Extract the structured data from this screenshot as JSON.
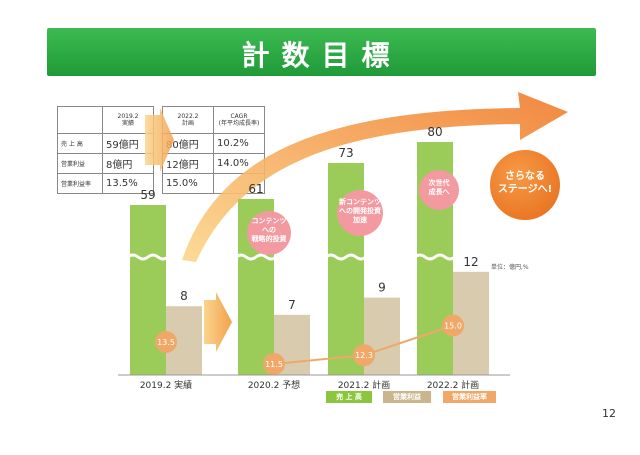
{
  "title": "計数目標",
  "table_left": {
    "header": "2019.2\n実績",
    "rows": [
      {
        "label": "売 上 高",
        "value": "59億円"
      },
      {
        "label": "営業利益",
        "value": "8億円"
      },
      {
        "label": "営業利益率",
        "value": "13.5%"
      }
    ]
  },
  "table_right": {
    "header_plan": "2022.2\n計画",
    "header_cagr": "CAGR\n(年平均成長率)",
    "rows": [
      {
        "plan": "80億円",
        "cagr": "10.2%"
      },
      {
        "plan": "12億円",
        "cagr": "14.0%"
      },
      {
        "plan": "15.0%",
        "cagr": ""
      }
    ]
  },
  "callouts": {
    "c1": "コンテンツ\nへの\n戦略的投資",
    "c2": "新コンテンツ\nへの開発投資\n加速",
    "c3": "次世代\n成長へ"
  },
  "next_stage": "さらなる\nステージへ!",
  "unit": "単位：億円,%",
  "page_number": "12",
  "legend": {
    "sales": "売 上 高",
    "op_income": "営業利益",
    "op_margin": "営業利益率"
  },
  "colors": {
    "sales": "#9bcc5a",
    "op_income": "#d9cbae",
    "op_margin": "#f0a868",
    "title_green": "#2aa844",
    "arrow": "#f4a64a"
  },
  "chart_data": {
    "type": "bar",
    "categories": [
      "2019.2 実績",
      "2020.2 予想",
      "2021.2 計画",
      "2022.2 計画"
    ],
    "series": [
      {
        "name": "売 上 高",
        "values": [
          59,
          61,
          73,
          80
        ],
        "labels": [
          "59",
          "61",
          "73",
          "80"
        ]
      },
      {
        "name": "営業利益",
        "values": [
          8,
          7,
          9,
          12
        ],
        "labels": [
          "8",
          "7",
          "9",
          "12"
        ]
      },
      {
        "name": "営業利益率",
        "values": [
          13.5,
          11.5,
          12.3,
          15.0
        ],
        "labels": [
          "13.5",
          "11.5",
          "12.3",
          "15.0"
        ]
      }
    ]
  }
}
